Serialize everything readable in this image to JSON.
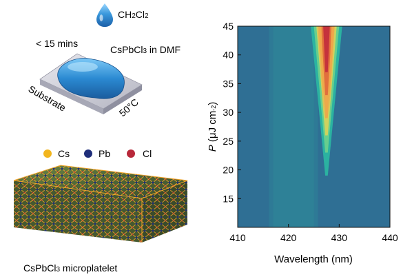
{
  "synthesis": {
    "solvent_drop": {
      "base": "CH",
      "sub1": "2",
      "mid": "Cl",
      "sub2": "2"
    },
    "time_label": "< 15 mins",
    "solution_label": {
      "pre": "CsPbCl",
      "sub": "3",
      "post": " in DMF"
    },
    "substrate_label": "Substrate",
    "temperature_label": "50°C"
  },
  "legend_atoms": [
    {
      "symbol": "Cs",
      "color": "#f2b51d"
    },
    {
      "symbol": "Pb",
      "color": "#1f2e7a"
    },
    {
      "symbol": "Cl",
      "color": "#b8283a"
    }
  ],
  "structure_caption": {
    "pre": "CsPbCl",
    "sub": "3",
    "post": " microplatelet"
  },
  "colors": {
    "background_map": "#2f6f94",
    "drop": "#2f86c9",
    "substrate": "#c9c9d4",
    "octahedra": "#4f6b39",
    "bonds": "#f2a52a"
  },
  "chart_data": {
    "type": "heatmap",
    "title": "",
    "xlabel": "Wavelength (nm)",
    "ylabel": {
      "italic": "P",
      "pre": " (μJ cm",
      "sup": "-2",
      "post": ")"
    },
    "xlim": [
      410,
      440
    ],
    "ylim": [
      10,
      45
    ],
    "xticks": [
      410,
      420,
      430,
      440
    ],
    "yticks": [
      15,
      20,
      25,
      30,
      35,
      40,
      45
    ],
    "color_scale": [
      "#2f6f94",
      "#2e8f9b",
      "#2bb7a2",
      "#6ed08c",
      "#d8d35a",
      "#f0a54a",
      "#e06a3c",
      "#c22d3c"
    ],
    "emission": {
      "spontaneous_center_nm": 421,
      "spontaneous_width_nm": 8,
      "lasing_peak_nm": 427.5,
      "threshold": 27
    }
  }
}
